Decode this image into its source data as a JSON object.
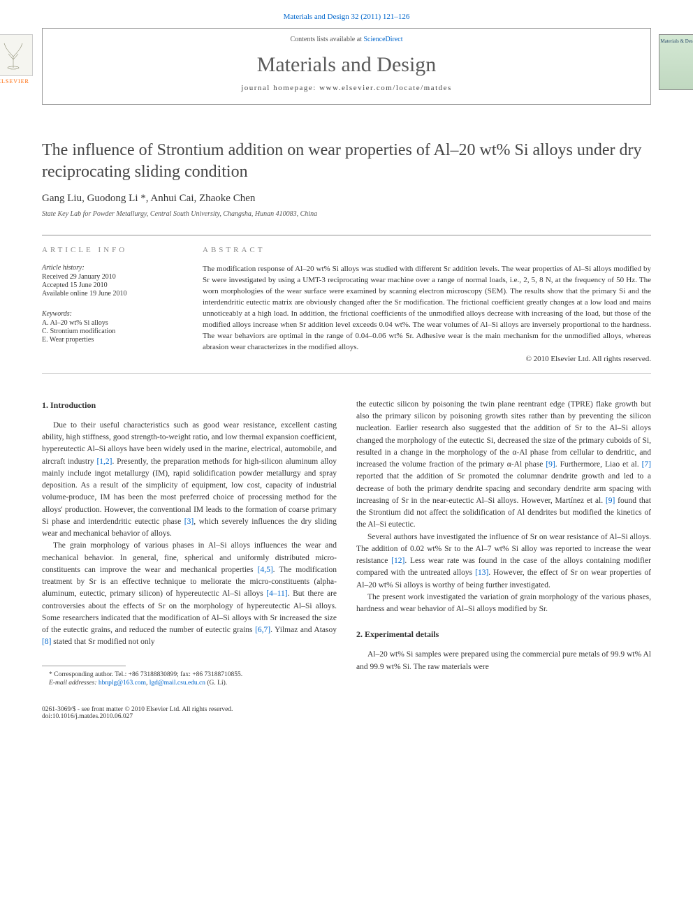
{
  "journal_ref": "Materials and Design 32 (2011) 121–126",
  "header": {
    "contents_text": "Contents lists available at ",
    "contents_link": "ScienceDirect",
    "journal_name": "Materials and Design",
    "homepage_label": "journal homepage: www.elsevier.com/locate/matdes",
    "elsevier_label": "ELSEVIER",
    "cover_title": "Materials & Design"
  },
  "article": {
    "title": "The influence of Strontium addition on wear properties of Al–20 wt% Si alloys under dry reciprocating sliding condition",
    "authors_html": "Gang Liu, Guodong Li *, Anhui Cai, Zhaoke Chen",
    "affiliation": "State Key Lab for Powder Metallurgy, Central South University, Changsha, Hunan 410083, China"
  },
  "info": {
    "heading": "ARTICLE INFO",
    "history_label": "Article history:",
    "history": [
      "Received 29 January 2010",
      "Accepted 15 June 2010",
      "Available online 19 June 2010"
    ],
    "keywords_label": "Keywords:",
    "keywords": [
      "A. Al–20 wt% Si alloys",
      "C. Strontium modification",
      "E. Wear properties"
    ]
  },
  "abstract": {
    "heading": "ABSTRACT",
    "text": "The modification response of Al–20 wt% Si alloys was studied with different Sr addition levels. The wear properties of Al–Si alloys modified by Sr were investigated by using a UMT-3 reciprocating wear machine over a range of normal loads, i.e., 2, 5, 8 N, at the frequency of 50 Hz. The worn morphologies of the wear surface were examined by scanning electron microscopy (SEM). The results show that the primary Si and the interdendritic eutectic matrix are obviously changed after the Sr modification. The frictional coefficient greatly changes at a low load and mains unnoticeably at a high load. In addition, the frictional coefficients of the unmodified alloys decrease with increasing of the load, but those of the modified alloys increase when Sr addition level exceeds 0.04 wt%. The wear volumes of Al–Si alloys are inversely proportional to the hardness. The wear behaviors are optimal in the range of 0.04–0.06 wt% Sr. Adhesive wear is the main mechanism for the unmodified alloys, whereas abrasion wear characterizes in the modified alloys.",
    "copyright": "© 2010 Elsevier Ltd. All rights reserved."
  },
  "sections": {
    "intro_heading": "1. Introduction",
    "exp_heading": "2. Experimental details",
    "left_paras": [
      "Due to their useful characteristics such as good wear resistance, excellent casting ability, high stiffness, good strength-to-weight ratio, and low thermal expansion coefficient, hypereutectic Al–Si alloys have been widely used in the marine, electrical, automobile, and aircraft industry [1,2]. Presently, the preparation methods for high-silicon aluminum alloy mainly include ingot metallurgy (IM), rapid solidification powder metallurgy and spray deposition. As a result of the simplicity of equipment, low cost, capacity of industrial volume-produce, IM has been the most preferred choice of processing method for the alloys' production. However, the conventional IM leads to the formation of coarse primary Si phase and interdendritic eutectic phase [3], which severely influences the dry sliding wear and mechanical behavior of alloys.",
      "The grain morphology of various phases in Al–Si alloys influences the wear and mechanical behavior. In general, fine, spherical and uniformly distributed micro-constituents can improve the wear and mechanical properties [4,5]. The modification treatment by Sr is an effective technique to meliorate the micro-constituents (alpha-aluminum, eutectic, primary silicon) of hypereutectic Al–Si alloys [4–11]. But there are controversies about the effects of Sr on the morphology of hypereutectic Al–Si alloys. Some researchers indicated that the modification of Al–Si alloys with Sr increased the size of the eutectic grains, and reduced the number of eutectic grains [6,7]. Yilmaz and Atasoy [8] stated that Sr modified not only"
    ],
    "right_paras": [
      "the eutectic silicon by poisoning the twin plane reentrant edge (TPRE) flake growth but also the primary silicon by poisoning growth sites rather than by preventing the silicon nucleation. Earlier research also suggested that the addition of Sr to the Al–Si alloys changed the morphology of the eutectic Si, decreased the size of the primary cuboids of Si, resulted in a change in the morphology of the α-Al phase from cellular to dendritic, and increased the volume fraction of the primary α-Al phase [9]. Furthermore, Liao et al. [7] reported that the addition of Sr promoted the columnar dendrite growth and led to a decrease of both the primary dendrite spacing and secondary dendrite arm spacing with increasing of Sr in the near-eutectic Al–Si alloys. However, Martínez et al. [9] found that the Strontium did not affect the solidification of Al dendrites but modified the kinetics of the Al–Si eutectic.",
      "Several authors have investigated the influence of Sr on wear resistance of Al–Si alloys. The addition of 0.02 wt% Sr to the Al–7 wt% Si alloy was reported to increase the wear resistance [12]. Less wear rate was found in the case of the alloys containing modifier compared with the untreated alloys [13]. However, the effect of Sr on wear properties of Al–20 wt% Si alloys is worthy of being further investigated.",
      "The present work investigated the variation of grain morphology of the various phases, hardness and wear behavior of Al–Si alloys modified by Sr."
    ],
    "exp_para": "Al–20 wt% Si samples were prepared using the commercial pure metals of 99.9 wt% Al and 99.9 wt% Si. The raw materials were"
  },
  "footnote": {
    "corr": "* Corresponding author. Tel.: +86 73188830899; fax: +86 73188710855.",
    "email_label": "E-mail addresses: ",
    "email1": "hbnplg@163.com",
    "email_sep": ", ",
    "email2": "lgd@mail.csu.edu.cn",
    "email_tail": " (G. Li)."
  },
  "footer": {
    "line1": "0261-3069/$ - see front matter © 2010 Elsevier Ltd. All rights reserved.",
    "line2": "doi:10.1016/j.matdes.2010.06.027"
  },
  "citations": {
    "c1": "[1,2]",
    "c2": "[3]",
    "c3": "[4,5]",
    "c4": "[4–11]",
    "c5": "[6,7]",
    "c6": "[8]",
    "c7": "[9]",
    "c8": "[7]",
    "c9": "[9]",
    "c10": "[12]",
    "c11": "[13]"
  },
  "colors": {
    "link": "#0066cc",
    "text": "#333333",
    "heading_grey": "#888888",
    "rule": "#cccccc",
    "elsevier_orange": "#ff6600"
  },
  "typography": {
    "title_fontsize": 24,
    "journal_fontsize": 30,
    "body_fontsize": 11.5,
    "abstract_fontsize": 11,
    "footnote_fontsize": 9.5
  }
}
